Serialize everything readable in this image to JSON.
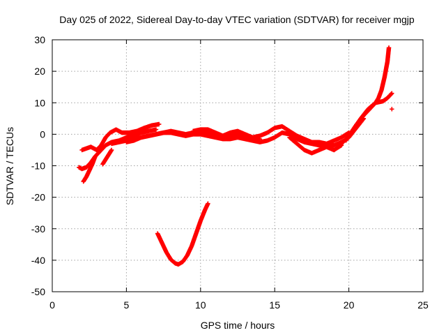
{
  "chart_data": {
    "type": "scatter",
    "title": "Day 025 of 2022, Sidereal Day-to-day VTEC variation (SDTVAR) for receiver mgjp",
    "xlabel": "GPS time / hours",
    "ylabel": "SDTVAR / TECUs",
    "xlim": [
      0,
      25
    ],
    "ylim": [
      -50,
      30
    ],
    "xticks": [
      0,
      5,
      10,
      15,
      20,
      25
    ],
    "yticks": [
      -50,
      -40,
      -30,
      -20,
      -10,
      0,
      10,
      20,
      30
    ],
    "grid": true,
    "marker": "+",
    "color": "#ff0000",
    "series": [
      {
        "name": "track-upper-left",
        "x": [
          2.0,
          2.3,
          2.6,
          3.0,
          3.3,
          3.6,
          3.9,
          4.3,
          4.7,
          5.2,
          5.7,
          6.2,
          6.7,
          7.2
        ],
        "y": [
          -5.0,
          -4.5,
          -4.0,
          -5.0,
          -3.5,
          -1.0,
          0.5,
          1.5,
          0.5,
          0.5,
          1.0,
          2.0,
          2.8,
          3.2
        ]
      },
      {
        "name": "track-lower-left",
        "x": [
          1.8,
          2.0,
          2.3,
          2.6,
          2.9,
          3.3,
          3.6,
          4.0,
          4.5,
          5.0,
          5.5,
          6.0,
          6.5,
          7.0
        ],
        "y": [
          -10.5,
          -11.0,
          -10.5,
          -9.0,
          -7.0,
          -5.0,
          -3.5,
          -2.5,
          -2.0,
          -1.0,
          -0.5,
          0.5,
          1.0,
          1.5
        ]
      },
      {
        "name": "track-spike-early",
        "x": [
          2.1,
          2.3,
          2.5,
          2.7,
          2.9
        ],
        "y": [
          -15.0,
          -13.5,
          -11.5,
          -9.5,
          -7.0
        ]
      },
      {
        "name": "track-dip-left",
        "x": [
          3.4,
          3.6,
          3.8,
          4.0
        ],
        "y": [
          -9.5,
          -8.0,
          -6.5,
          -5.0
        ]
      },
      {
        "name": "track-middle-a",
        "x": [
          4.0,
          4.5,
          5.0,
          5.5,
          6.0,
          6.5,
          7.0,
          7.5,
          8.0,
          8.5,
          9.0,
          9.5,
          10.0,
          10.5,
          11.0,
          11.5,
          12.0,
          12.5,
          13.0,
          13.5,
          14.0,
          14.5,
          15.0,
          15.5,
          16.0,
          16.5,
          17.0,
          17.5,
          18.0,
          18.5,
          19.0,
          19.5,
          20.0
        ],
        "y": [
          -3.0,
          -2.5,
          -2.0,
          -1.5,
          -1.0,
          -0.5,
          0.0,
          0.5,
          1.0,
          0.5,
          0.0,
          0.5,
          1.0,
          0.5,
          0.0,
          -0.5,
          -0.5,
          0.0,
          -0.5,
          -1.0,
          -0.5,
          0.5,
          2.0,
          2.5,
          1.0,
          -0.5,
          -1.5,
          -2.5,
          -2.5,
          -3.0,
          -2.0,
          -1.0,
          0.5
        ]
      },
      {
        "name": "track-middle-b",
        "x": [
          5.0,
          5.5,
          6.0,
          6.5,
          7.0,
          7.5,
          8.0,
          8.5,
          9.0,
          9.5,
          10.0,
          10.5,
          11.0,
          11.5,
          12.0,
          12.5,
          13.0,
          13.5,
          14.0,
          14.5,
          15.0,
          15.5,
          16.0,
          16.5,
          17.0,
          17.5,
          18.0,
          18.5,
          19.0
        ],
        "y": [
          -2.5,
          -2.0,
          -1.0,
          -0.5,
          0.0,
          0.5,
          0.5,
          0.0,
          -0.5,
          0.0,
          0.0,
          -0.5,
          -1.0,
          -1.5,
          -1.5,
          -1.0,
          -1.5,
          -2.0,
          -2.5,
          -2.0,
          -1.0,
          0.5,
          0.0,
          -1.5,
          -2.5,
          -3.0,
          -3.5,
          -4.0,
          -5.0
        ]
      },
      {
        "name": "track-midday-bump",
        "x": [
          9.5,
          10.0,
          10.5,
          11.0,
          11.5,
          12.0,
          12.5,
          13.0,
          13.5,
          14.0
        ],
        "y": [
          1.0,
          1.5,
          1.5,
          0.5,
          -0.5,
          0.5,
          1.0,
          0.0,
          -1.0,
          -1.5
        ]
      },
      {
        "name": "track-afternoon-dip",
        "x": [
          16.0,
          16.5,
          17.0,
          17.5,
          18.0,
          18.5,
          19.0,
          19.5
        ],
        "y": [
          -1.0,
          -3.0,
          -5.0,
          -6.0,
          -5.0,
          -4.0,
          -5.0,
          -3.5
        ]
      },
      {
        "name": "track-late-dip",
        "x": [
          17.5,
          18.0,
          18.5,
          19.0,
          19.5,
          20.0,
          20.5,
          21.0
        ],
        "y": [
          -2.5,
          -3.0,
          -3.5,
          -3.5,
          -2.5,
          -1.0,
          2.0,
          5.0
        ]
      },
      {
        "name": "track-rise-to-peak",
        "x": [
          19.5,
          20.0,
          20.5,
          21.0,
          21.5,
          21.8,
          22.0,
          22.2,
          22.4,
          22.6,
          22.7
        ],
        "y": [
          -3.0,
          -0.5,
          3.0,
          6.0,
          8.5,
          10.0,
          11.5,
          14.0,
          18.0,
          23.0,
          27.5
        ]
      },
      {
        "name": "track-end-plateau",
        "x": [
          19.8,
          20.3,
          20.8,
          21.3,
          21.8,
          22.3,
          22.6,
          22.9
        ],
        "y": [
          -2.0,
          1.5,
          5.0,
          8.0,
          10.0,
          10.5,
          11.5,
          13.0
        ]
      },
      {
        "name": "point-isolated-late",
        "x": [
          22.9
        ],
        "y": [
          8.0
        ]
      },
      {
        "name": "track-deep-trough",
        "x": [
          7.1,
          7.4,
          7.7,
          8.0,
          8.3,
          8.5,
          8.8,
          9.1,
          9.4,
          9.7,
          10.0,
          10.3,
          10.5
        ],
        "y": [
          -31.5,
          -34.5,
          -37.5,
          -39.8,
          -41.0,
          -41.3,
          -40.5,
          -38.5,
          -35.5,
          -31.5,
          -27.5,
          -24.0,
          -22.0
        ]
      }
    ]
  }
}
